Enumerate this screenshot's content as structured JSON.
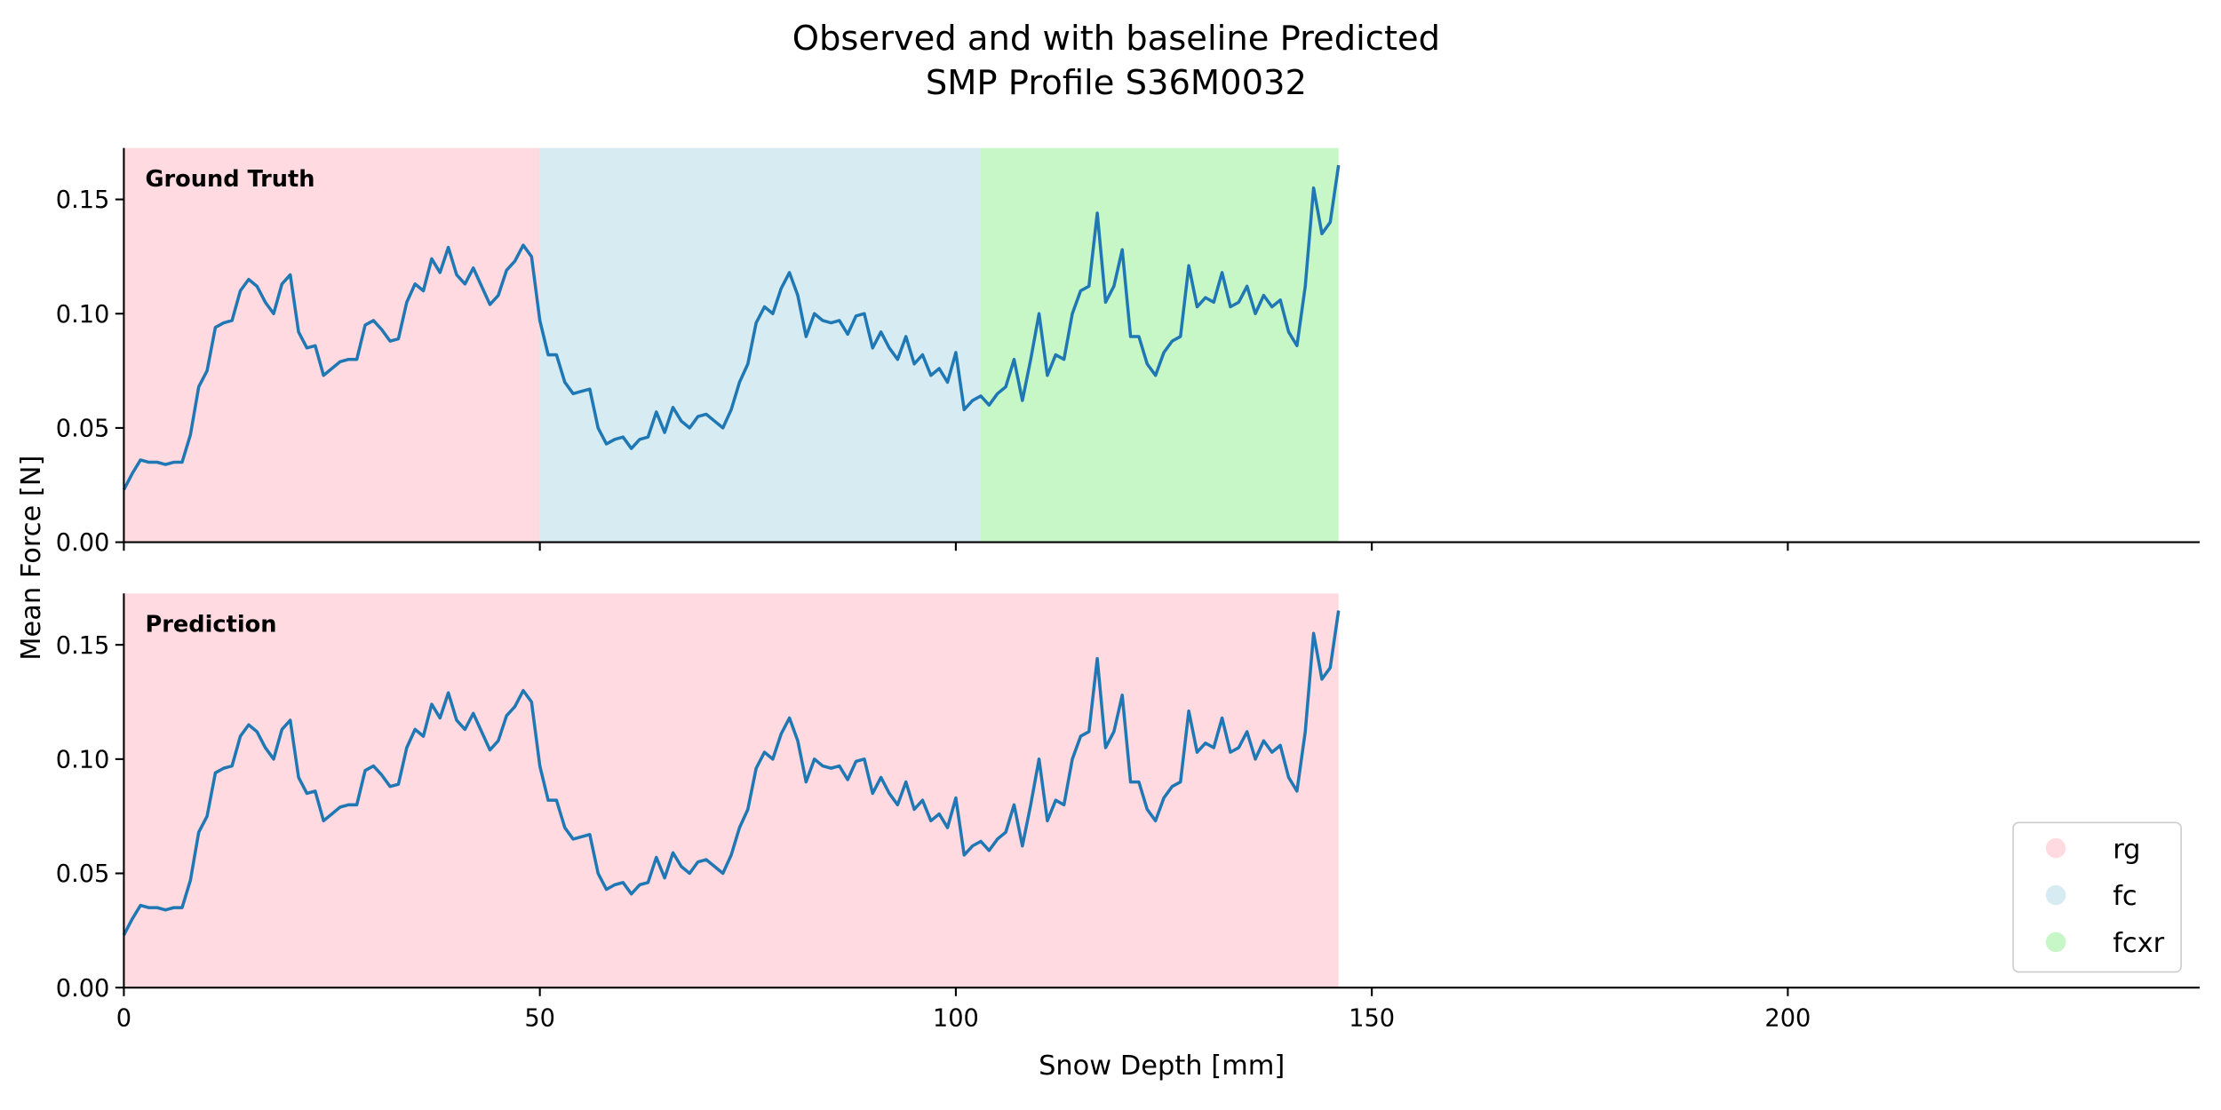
{
  "chart_data": {
    "type": "line",
    "title": [
      "Observed and with baseline Predicted",
      "SMP Profile S36M0032"
    ],
    "x_label": "Snow Depth [mm]",
    "y_label": "Mean Force [N]",
    "xlim": [
      0,
      249.5
    ],
    "xticks": [
      0,
      50,
      100,
      150,
      200
    ],
    "ylim": [
      0,
      0.1725
    ],
    "yticks": [
      {
        "value": 0,
        "label": "0.00"
      },
      {
        "value": 0.05,
        "label": "0.05"
      },
      {
        "value": 0.1,
        "label": "0.10"
      },
      {
        "value": 0.15,
        "label": "0.15"
      }
    ],
    "x": [
      0,
      1,
      2,
      3,
      4,
      5,
      6,
      7,
      8,
      9,
      10,
      11,
      12,
      13,
      14,
      15,
      16,
      17,
      18,
      19,
      20,
      21,
      22,
      23,
      24,
      25,
      26,
      27,
      28,
      29,
      30,
      31,
      32,
      33,
      34,
      35,
      36,
      37,
      38,
      39,
      40,
      41,
      42,
      43,
      44,
      45,
      46,
      47,
      48,
      49,
      50,
      51,
      52,
      53,
      54,
      55,
      56,
      57,
      58,
      59,
      60,
      61,
      62,
      63,
      64,
      65,
      66,
      67,
      68,
      69,
      70,
      71,
      72,
      73,
      74,
      75,
      76,
      77,
      78,
      79,
      80,
      81,
      82,
      83,
      84,
      85,
      86,
      87,
      88,
      89,
      90,
      91,
      92,
      93,
      94,
      95,
      96,
      97,
      98,
      99,
      100,
      101,
      102,
      103,
      104,
      105,
      106,
      107,
      108,
      109,
      110,
      111,
      112,
      113,
      114,
      115,
      116,
      117,
      118,
      119,
      120,
      121,
      122,
      123,
      124,
      125,
      126,
      127,
      128,
      129,
      130,
      131,
      132,
      133,
      134,
      135,
      136,
      137,
      138,
      139,
      140,
      141,
      142,
      143,
      144,
      145,
      146
    ],
    "series": [
      {
        "color": "#1f77b4",
        "values": [
          0.023,
          0.03,
          0.036,
          0.035,
          0.035,
          0.034,
          0.035,
          0.035,
          0.047,
          0.068,
          0.075,
          0.094,
          0.096,
          0.097,
          0.11,
          0.115,
          0.112,
          0.105,
          0.1,
          0.113,
          0.117,
          0.092,
          0.085,
          0.086,
          0.073,
          0.076,
          0.079,
          0.08,
          0.08,
          0.095,
          0.097,
          0.093,
          0.088,
          0.089,
          0.105,
          0.113,
          0.11,
          0.124,
          0.118,
          0.129,
          0.117,
          0.113,
          0.12,
          0.112,
          0.104,
          0.108,
          0.119,
          0.123,
          0.13,
          0.125,
          0.097,
          0.082,
          0.082,
          0.07,
          0.065,
          0.066,
          0.067,
          0.05,
          0.043,
          0.045,
          0.046,
          0.041,
          0.045,
          0.046,
          0.057,
          0.048,
          0.059,
          0.053,
          0.05,
          0.055,
          0.056,
          0.053,
          0.05,
          0.058,
          0.07,
          0.078,
          0.096,
          0.103,
          0.1,
          0.111,
          0.118,
          0.108,
          0.09,
          0.1,
          0.097,
          0.096,
          0.097,
          0.091,
          0.099,
          0.1,
          0.085,
          0.092,
          0.085,
          0.08,
          0.09,
          0.078,
          0.082,
          0.073,
          0.076,
          0.07,
          0.083,
          0.058,
          0.062,
          0.064,
          0.06,
          0.065,
          0.068,
          0.08,
          0.062,
          0.08,
          0.1,
          0.073,
          0.082,
          0.08,
          0.1,
          0.11,
          0.112,
          0.144,
          0.105,
          0.112,
          0.128,
          0.09,
          0.09,
          0.078,
          0.073,
          0.083,
          0.088,
          0.09,
          0.121,
          0.103,
          0.107,
          0.105,
          0.118,
          0.103,
          0.105,
          0.112,
          0.1,
          0.108,
          0.103,
          0.106,
          0.092,
          0.086,
          0.112,
          0.155,
          0.135,
          0.14,
          0.165
        ]
      }
    ],
    "legend": [
      {
        "name": "rg",
        "color": "#ffb6c1"
      },
      {
        "name": "fc",
        "color": "#add8e6"
      },
      {
        "name": "fcxr",
        "color": "#90ee90"
      }
    ],
    "legend_position": "lower right",
    "panels": [
      {
        "label": "Ground Truth",
        "regions": [
          {
            "class": "rg",
            "start": 0,
            "end": 50
          },
          {
            "class": "fc",
            "start": 50,
            "end": 103
          },
          {
            "class": "fcxr",
            "start": 103,
            "end": 146
          }
        ]
      },
      {
        "label": "Prediction",
        "regions": [
          {
            "class": "rg",
            "start": 0,
            "end": 146
          }
        ]
      }
    ]
  }
}
